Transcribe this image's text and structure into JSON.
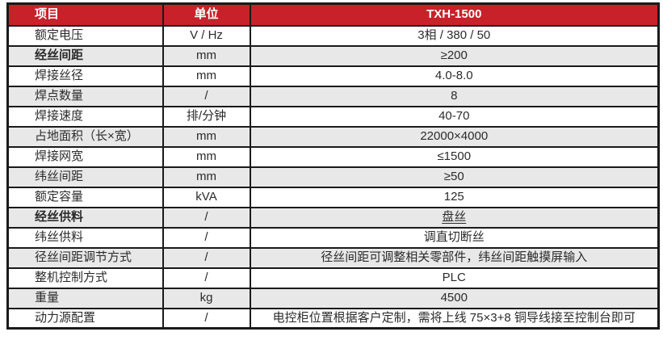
{
  "table": {
    "headers": {
      "item": "项目",
      "unit": "单位",
      "model": "TXH-1500"
    },
    "rows": [
      {
        "label": "额定电压",
        "unit": "V / Hz",
        "value": "3相 / 380 / 50"
      },
      {
        "label": "经丝间距",
        "unit": "mm",
        "value": "≥200"
      },
      {
        "label": "焊接丝径",
        "unit": "mm",
        "value": "4.0-8.0"
      },
      {
        "label": "焊点数量",
        "unit": "/",
        "value": "8"
      },
      {
        "label": "焊接速度",
        "unit": "排/分钟",
        "value": "40-70"
      },
      {
        "label": "占地面积（长×宽）",
        "unit": "mm",
        "value": "22000×4000"
      },
      {
        "label": "焊接网宽",
        "unit": "mm",
        "value": "≤1500"
      },
      {
        "label": "纬丝间距",
        "unit": "mm",
        "value": "≥50"
      },
      {
        "label": "额定容量",
        "unit": "kVA",
        "value": "125"
      },
      {
        "label": "经丝供料",
        "unit": "/",
        "value": "盘丝"
      },
      {
        "label": "纬丝供料",
        "unit": "/",
        "value": "调直切断丝"
      },
      {
        "label": "径丝间距调节方式",
        "unit": "/",
        "value": "径丝间距可调整相关零部件，纬丝间距触摸屏输入"
      },
      {
        "label": "整机控制方式",
        "unit": "/",
        "value": "PLC"
      },
      {
        "label": "重量",
        "unit": "kg",
        "value": "4500"
      },
      {
        "label": "动力源配置",
        "unit": "/",
        "value": "电控柜位置根据客户定制，需将上线 75×3+8 铜导线接至控制台即可"
      }
    ],
    "colors": {
      "header_bg": "#c8212a",
      "header_text": "#ffffff",
      "stripe_bg": "#e8e8e8",
      "border": "#1a1a1a"
    }
  }
}
